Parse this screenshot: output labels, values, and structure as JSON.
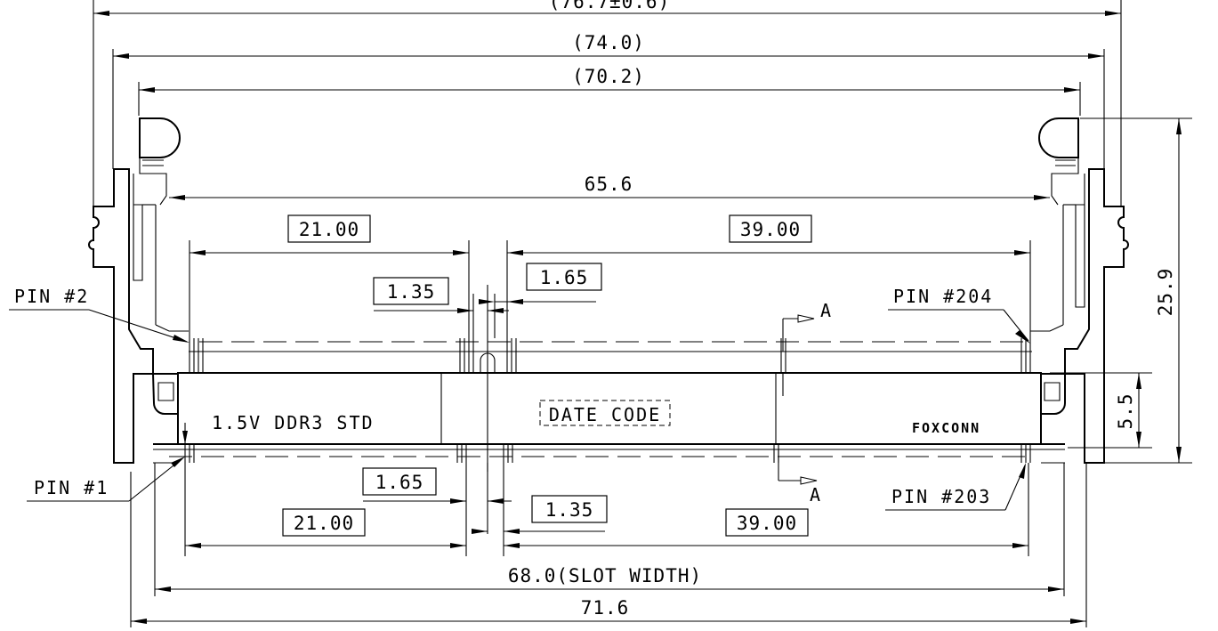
{
  "overall_dims": {
    "top_partial": "(76.7±0.6)",
    "dim_74": "(74.0)",
    "dim_70": "(70.2)",
    "dim_656": "65.6",
    "slot_width": "68.0(SLOT WIDTH)",
    "dim_716": "71.6"
  },
  "vertical_dims": {
    "height_259": "25.9",
    "height_55": "5.5"
  },
  "upper_pitch": {
    "left_21": "21.00",
    "right_39": "39.00",
    "key_left_135": "1.35",
    "key_right_165": "1.65"
  },
  "lower_pitch": {
    "left_21": "21.00",
    "right_39": "39.00",
    "key_left_165": "1.65",
    "key_right_135": "1.35"
  },
  "pins": {
    "pin2": "PIN #2",
    "pin204": "PIN #204",
    "pin1": "PIN #1",
    "pin203": "PIN #203"
  },
  "body": {
    "voltage_label": "1.5V DDR3 STD",
    "date_code": "DATE CODE",
    "brand": "FOXCONN"
  },
  "section": {
    "marker_top": "A",
    "marker_bottom": "A"
  }
}
